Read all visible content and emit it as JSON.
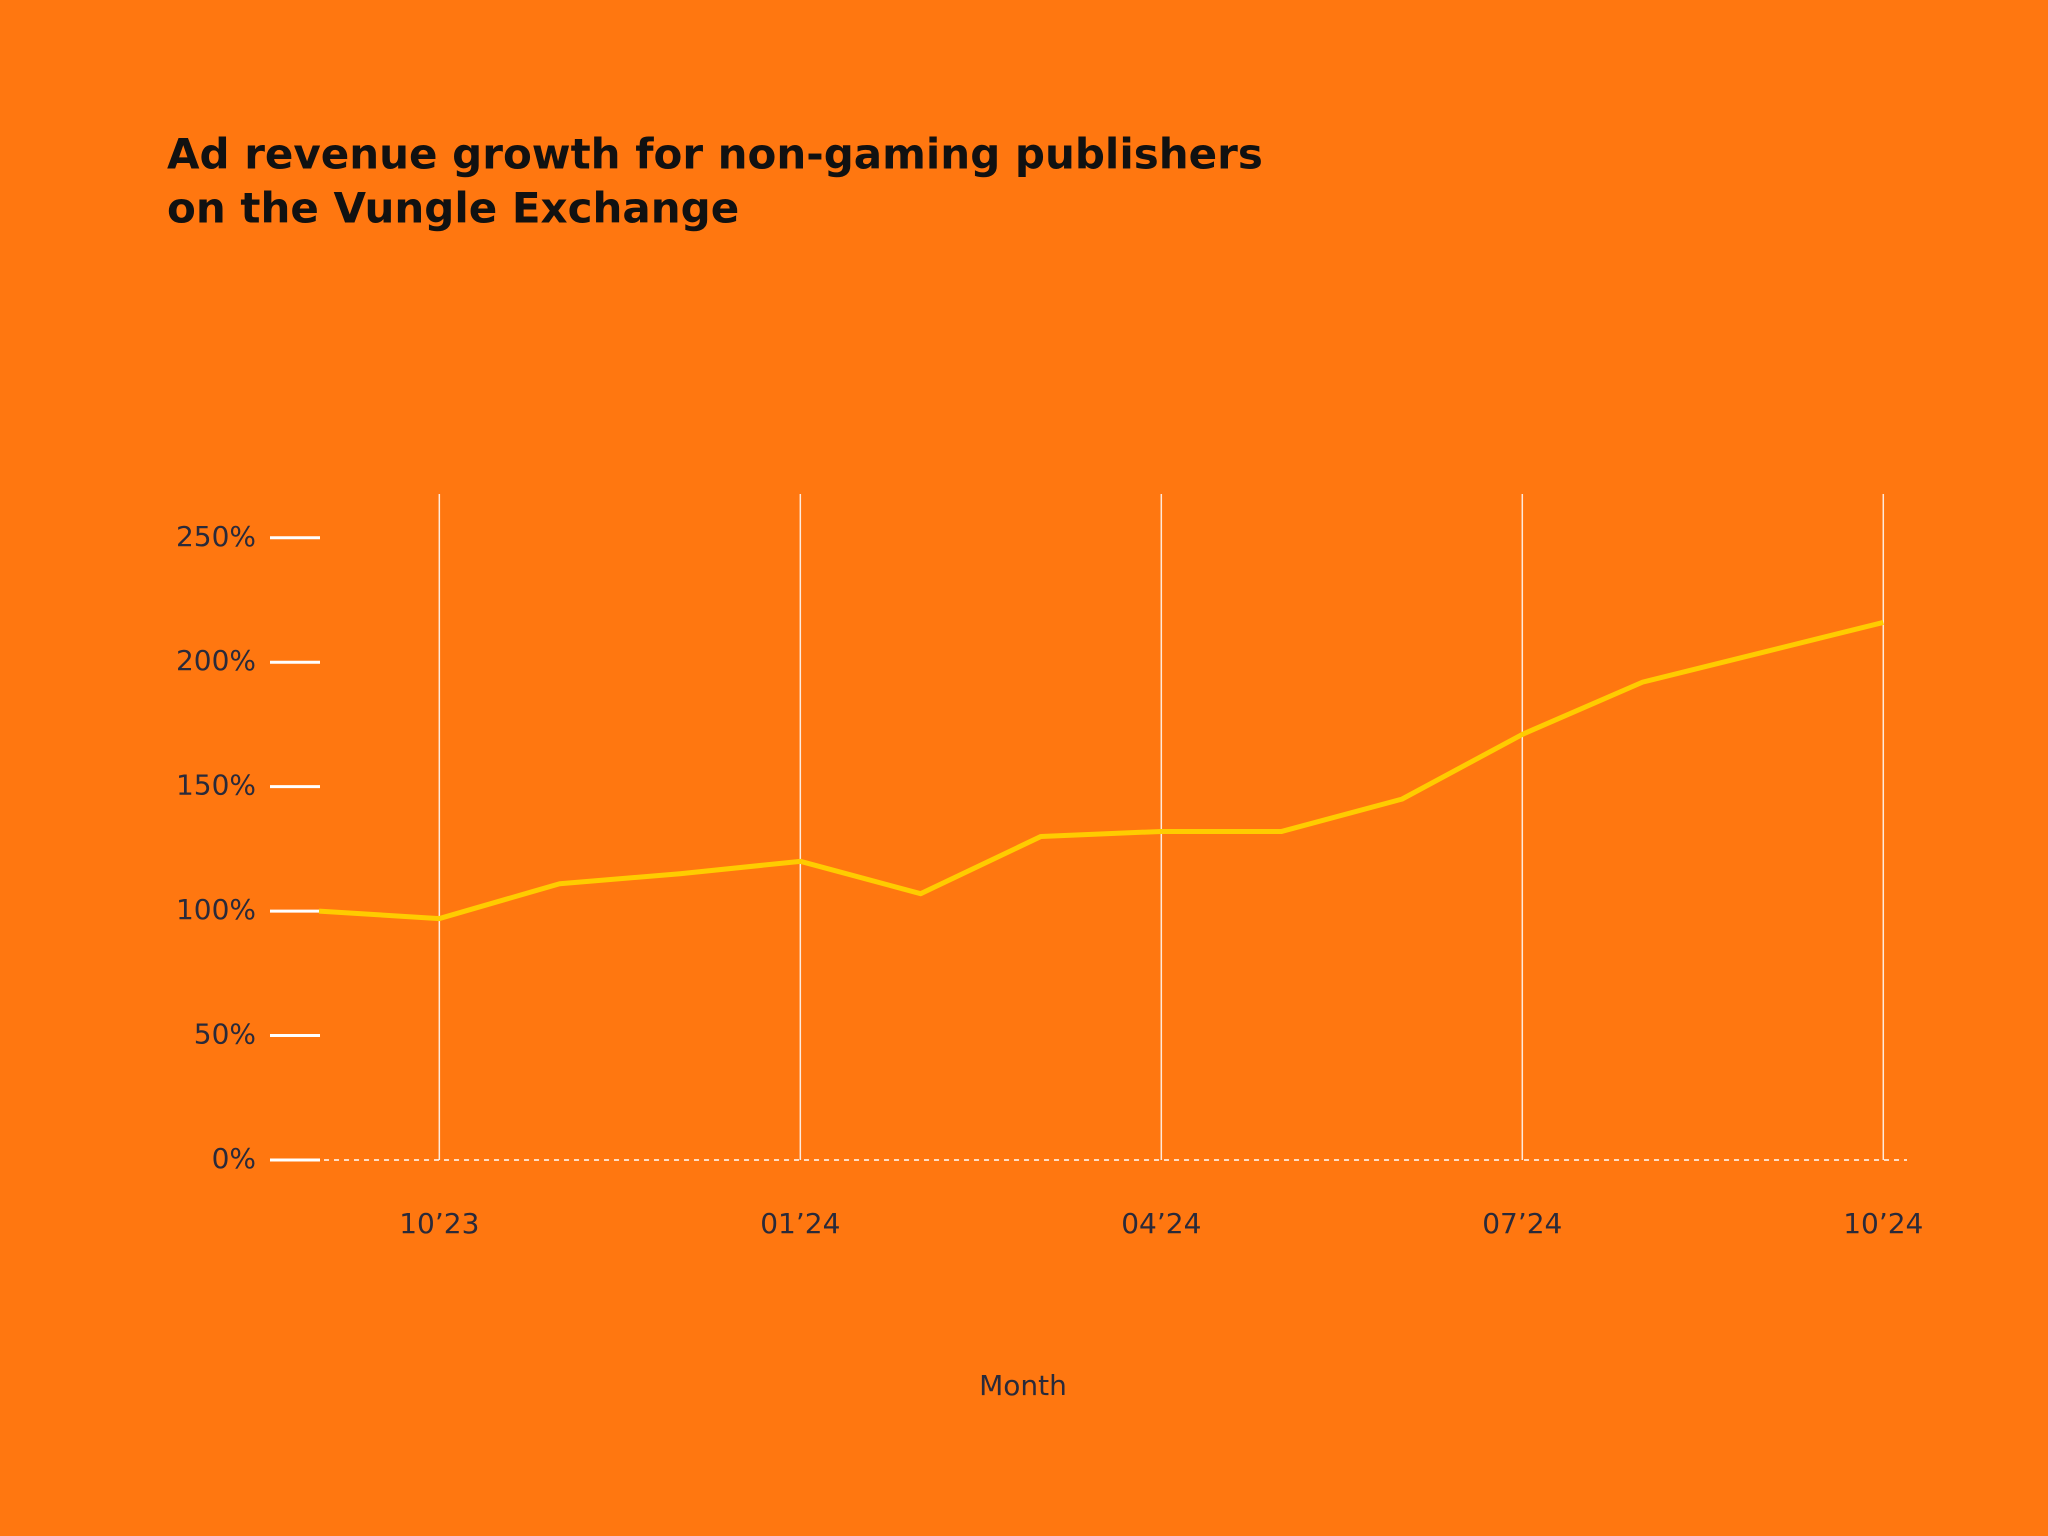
{
  "chart_data": {
    "type": "line",
    "title": [
      "Ad revenue growth for non-gaming publishers",
      "on the Vungle Exchange"
    ],
    "x_label": "Month",
    "categories": [
      null,
      "10’23",
      null,
      null,
      "01’24",
      null,
      null,
      "04’24",
      null,
      null,
      "07’24",
      null,
      null,
      "10’24"
    ],
    "series": [
      {
        "name": "Ad revenue growth",
        "color": "#ffcc00",
        "values": [
          100,
          97,
          111,
          115,
          120,
          107,
          130,
          132,
          132,
          145,
          171,
          192,
          204,
          216
        ]
      }
    ],
    "ylim": [
      0,
      270
    ],
    "yticks": [
      {
        "value": 0,
        "label": "0%"
      },
      {
        "value": 50,
        "label": "50%"
      },
      {
        "value": 100,
        "label": "100%"
      },
      {
        "value": 150,
        "label": "150%"
      },
      {
        "value": 200,
        "label": "200%"
      },
      {
        "value": 250,
        "label": "250%"
      }
    ],
    "grid": true
  }
}
